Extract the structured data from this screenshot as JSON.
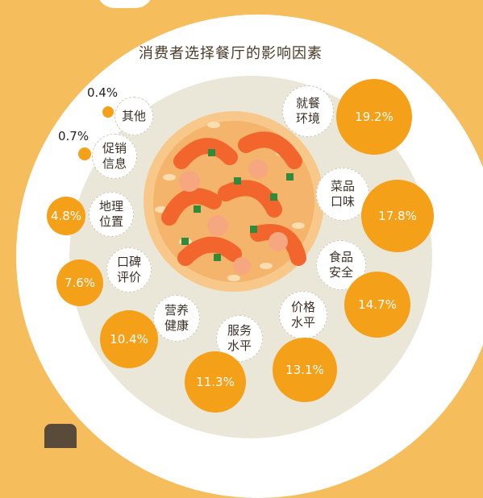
{
  "chart_data": {
    "type": "bubble",
    "title": "消费者选择餐厅的影响因素",
    "items": [
      {
        "label_top": "就餐",
        "label_bottom": "环境",
        "value": 19.2,
        "value_label": "19.2%"
      },
      {
        "label_top": "菜品",
        "label_bottom": "口味",
        "value": 17.8,
        "value_label": "17.8%"
      },
      {
        "label_top": "食品",
        "label_bottom": "安全",
        "value": 14.7,
        "value_label": "14.7%"
      },
      {
        "label_top": "价格",
        "label_bottom": "水平",
        "value": 13.1,
        "value_label": "13.1%"
      },
      {
        "label_top": "服务",
        "label_bottom": "水平",
        "value": 11.3,
        "value_label": "11.3%"
      },
      {
        "label_top": "营养",
        "label_bottom": "健康",
        "value": 10.4,
        "value_label": "10.4%"
      },
      {
        "label_top": "口碑",
        "label_bottom": "评价",
        "value": 7.6,
        "value_label": "7.6%"
      },
      {
        "label_top": "地理",
        "label_bottom": "位置",
        "value": 4.8,
        "value_label": "4.8%"
      },
      {
        "label_top": "促销",
        "label_bottom": "信息",
        "value": 0.7,
        "value_label": "0.7%"
      },
      {
        "label_top": "其他",
        "label_bottom": "",
        "value": 0.4,
        "value_label": "0.4%"
      }
    ]
  },
  "colors": {
    "background": "#f6bd5c",
    "bubble": "#f4a019",
    "plate": "#ffffff",
    "inner_plate": "#ebe7d8",
    "label_border": "#cfcab8"
  },
  "decoration": {
    "center_image": "shrimp-fried-rice-illustration"
  }
}
